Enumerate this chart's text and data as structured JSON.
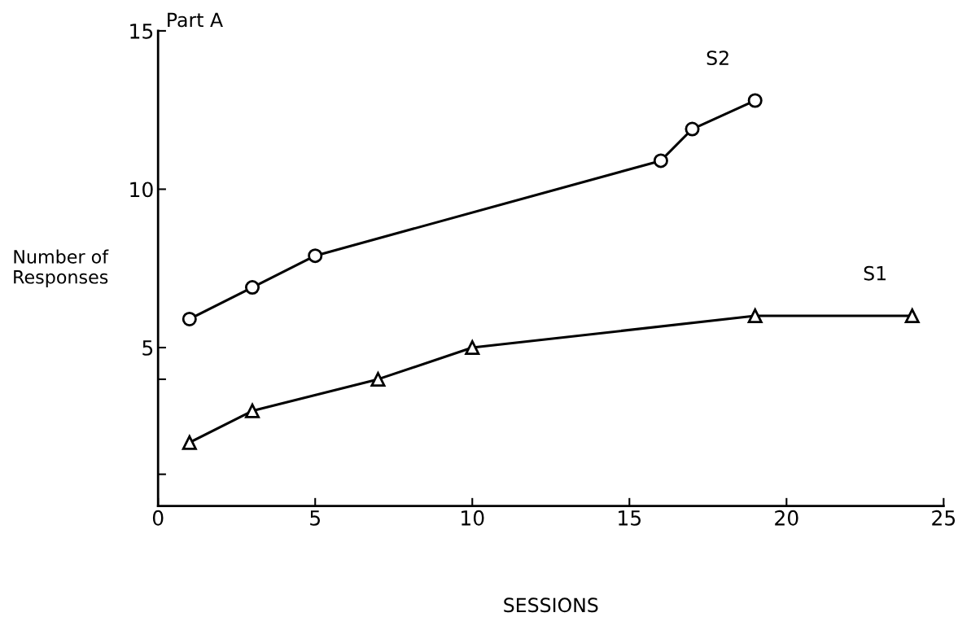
{
  "chart_data": {
    "type": "line",
    "title": "Part A",
    "xlabel": "SESSIONS",
    "ylabel": "Number of\nResponses",
    "xlim": [
      0,
      25
    ],
    "xticks": [
      0,
      5,
      10,
      15,
      20,
      25
    ],
    "ylim": [
      0,
      15
    ],
    "yticks": [
      {
        "value": 1,
        "label": null
      },
      {
        "value": 4,
        "label": null
      },
      5,
      10,
      15
    ],
    "grid": false,
    "legend": false,
    "line_style": "solid",
    "series": [
      {
        "name": "S2",
        "color": "#000000",
        "marker": "circle",
        "x": [
          1,
          3,
          5,
          16,
          17,
          19
        ],
        "values": [
          5.9,
          6.9,
          7.9,
          10.9,
          11.9,
          12.8
        ]
      },
      {
        "name": "S1",
        "color": "#000000",
        "marker": "triangle",
        "x": [
          1,
          3,
          7,
          10,
          19,
          24
        ],
        "values": [
          2.0,
          3.0,
          4.0,
          5.0,
          6.0,
          6.0
        ]
      }
    ]
  }
}
